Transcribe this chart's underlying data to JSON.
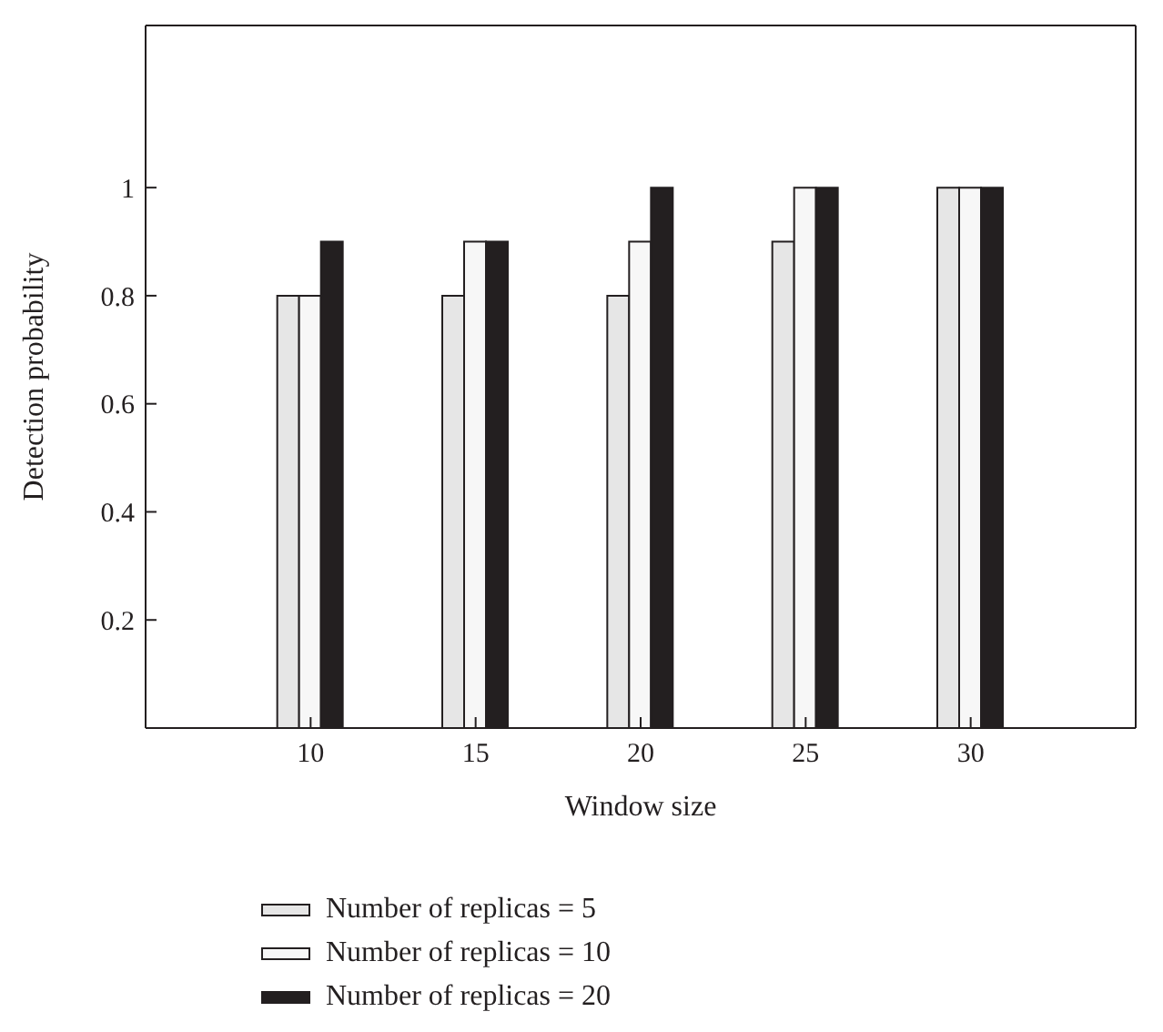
{
  "chart_data": {
    "type": "bar",
    "xlabel": "Window size",
    "ylabel": "Detection probability",
    "x": [
      10,
      15,
      20,
      25,
      30
    ],
    "xlim": [
      5,
      35
    ],
    "xticks": [
      10,
      15,
      20,
      25,
      30
    ],
    "ylim": [
      0,
      1.3
    ],
    "yticks": [
      0.2,
      0.4,
      0.6,
      0.8,
      1
    ],
    "series": [
      {
        "name": "Number of replicas = 5",
        "color": "#e6e6e6",
        "values": [
          0.8,
          0.8,
          0.8,
          0.9,
          1
        ]
      },
      {
        "name": "Number of replicas = 10",
        "color": "#f7f7f7",
        "values": [
          0.8,
          0.9,
          0.9,
          1,
          1
        ]
      },
      {
        "name": "Number of replicas = 20",
        "color": "#231f20",
        "values": [
          0.9,
          0.9,
          1,
          1,
          1
        ]
      }
    ],
    "grid": false,
    "legend": "bottom"
  }
}
